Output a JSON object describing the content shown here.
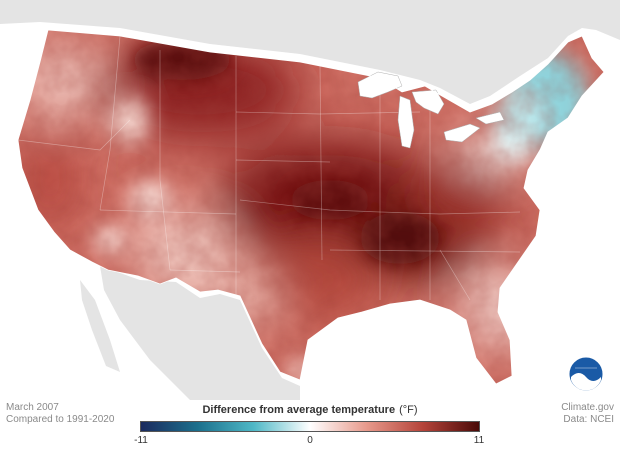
{
  "map": {
    "caption_date": "March 2007",
    "caption_baseline": "Compared to 1991-2020",
    "credit_site": "Climate.gov",
    "credit_data": "Data: NCEI",
    "logo_text": "NOAA"
  },
  "legend": {
    "title": "Difference from average temperature",
    "unit": "(°F)",
    "min_label": "-11",
    "mid_label": "0",
    "max_label": "11",
    "colors": [
      "#1b2a5e",
      "#1b6f8c",
      "#4fb8c6",
      "#ffffff",
      "#e79a8c",
      "#b5443a",
      "#4a0a08"
    ]
  }
}
